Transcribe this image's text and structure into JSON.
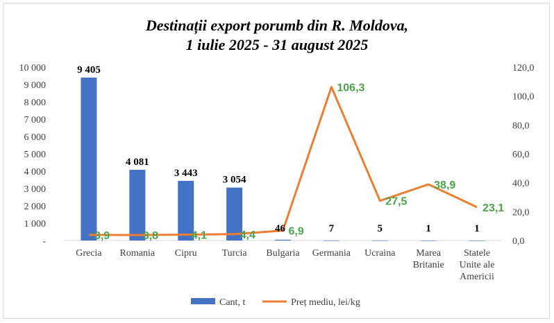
{
  "chart_data": {
    "type": "bar",
    "title_line1": "Destinații export porumb din R. Moldova,",
    "title_line2": "1 iulie 2025 - 31 august 2025",
    "categories": [
      [
        "Grecia"
      ],
      [
        "Romania"
      ],
      [
        "Cipru"
      ],
      [
        "Turcia"
      ],
      [
        "Bulgaria"
      ],
      [
        "Germania"
      ],
      [
        "Ucraina"
      ],
      [
        "Marea",
        "Britanie"
      ],
      [
        "Statele",
        "Unite ale",
        "Americii"
      ]
    ],
    "series": [
      {
        "name": "Cant, t",
        "type": "bar",
        "axis": "left",
        "color": "#4472c4",
        "values": [
          9405,
          4081,
          3443,
          3054,
          46,
          7,
          5,
          1,
          1
        ],
        "labels": [
          "9 405",
          "4 081",
          "3 443",
          "3 054",
          "46",
          "7",
          "5",
          "1",
          "1"
        ]
      },
      {
        "name": "Preț mediu, lei/kg",
        "type": "line",
        "axis": "right",
        "color": "#ed7d31",
        "values": [
          3.9,
          3.8,
          4.1,
          4.4,
          6.9,
          106.3,
          27.5,
          38.9,
          23.1
        ],
        "labels": [
          "3,9",
          "3,8",
          "4,1",
          "4,4",
          "6,9",
          "106,3",
          "27,5",
          "38,9",
          "23,1"
        ]
      }
    ],
    "ylim_left": [
      0,
      10000
    ],
    "ylim_right": [
      0,
      120
    ],
    "left_ticks": [
      "-",
      "1 000",
      "2 000",
      "3 000",
      "4 000",
      "5 000",
      "6 000",
      "7 000",
      "8 000",
      "9 000",
      "10 000"
    ],
    "right_ticks": [
      "0,0",
      "20,0",
      "40,0",
      "60,0",
      "80,0",
      "100,0",
      "120,0"
    ],
    "legend_position": "bottom",
    "grid": false,
    "label_color": "#4aa54a"
  }
}
